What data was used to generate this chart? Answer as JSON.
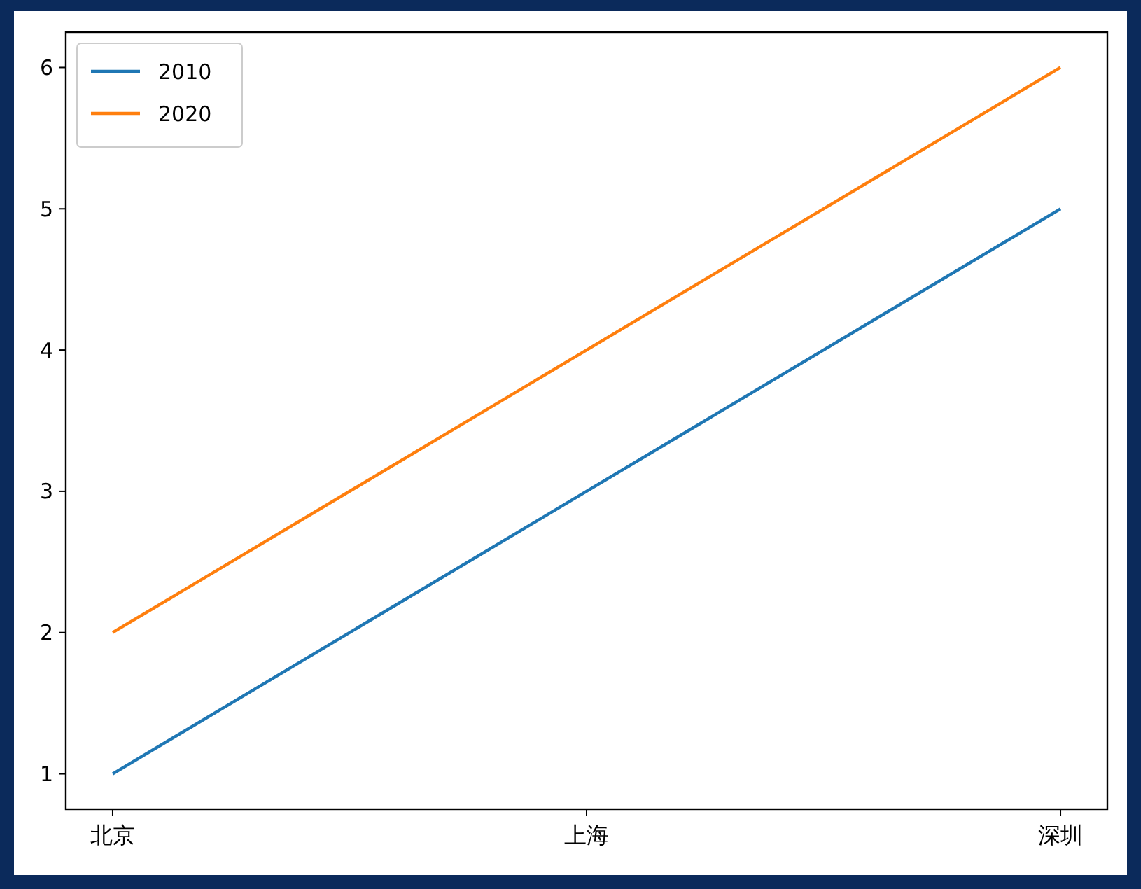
{
  "chart_data": {
    "type": "line",
    "categories": [
      "北京",
      "上海",
      "深圳"
    ],
    "series": [
      {
        "name": "2010",
        "color": "#1f77b4",
        "values": [
          1,
          3,
          5
        ]
      },
      {
        "name": "2020",
        "color": "#ff7f0e",
        "values": [
          2,
          4,
          6
        ]
      }
    ],
    "ylim": [
      0.75,
      6.25
    ],
    "yticks": [
      1,
      2,
      3,
      4,
      5,
      6
    ],
    "grid": false,
    "legend": "top left",
    "marker": "none",
    "line_style": "solid"
  }
}
